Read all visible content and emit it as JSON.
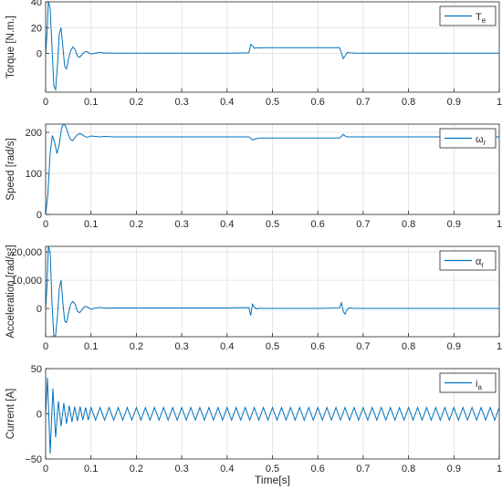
{
  "figure": {
    "xlabel": "Time[s]"
  },
  "colors": {
    "line": "#0072BD",
    "grid": "#dfdfdf",
    "axis": "#262626",
    "background": "#ffffff"
  },
  "chart_data": [
    {
      "type": "line",
      "ylabel": "Torque [N.m.]",
      "xlim": [
        0,
        1
      ],
      "ylim": [
        -30,
        40
      ],
      "xticks": [
        "0",
        "0.1",
        "0.2",
        "0.3",
        "0.4",
        "0.5",
        "0.6",
        "0.7",
        "0.8",
        "0.9",
        "1"
      ],
      "yticks": [
        {
          "v": 0,
          "label": "0"
        },
        {
          "v": 20,
          "label": "20"
        },
        {
          "v": 40,
          "label": "40"
        }
      ],
      "grid": true,
      "legend": "top-right",
      "series": [
        {
          "name": "T",
          "name_sub": "e",
          "x": [
            0,
            0.003,
            0.006,
            0.01,
            0.014,
            0.018,
            0.022,
            0.026,
            0.03,
            0.034,
            0.038,
            0.042,
            0.046,
            0.05,
            0.055,
            0.06,
            0.065,
            0.07,
            0.075,
            0.08,
            0.085,
            0.09,
            0.095,
            0.1,
            0.11,
            0.12,
            0.13,
            0.14,
            0.15,
            0.2,
            0.3,
            0.4,
            0.448,
            0.452,
            0.456,
            0.46,
            0.465,
            0.47,
            0.48,
            0.5,
            0.6,
            0.648,
            0.652,
            0.656,
            0.66,
            0.665,
            0.67,
            0.68,
            0.7,
            0.8,
            0.9,
            1.0
          ],
          "y": [
            0,
            15,
            40,
            35,
            5,
            -25,
            -28,
            -10,
            15,
            20,
            5,
            -10,
            -12,
            -5,
            2,
            5,
            3,
            -2,
            -3,
            -1,
            1,
            1.5,
            0.5,
            -0.5,
            0.3,
            0.8,
            0.2,
            0.4,
            0.2,
            0.2,
            0.2,
            0.2,
            0.5,
            7,
            6,
            4,
            4.5,
            4.2,
            4.5,
            4.5,
            4.5,
            4.5,
            0.5,
            -4,
            -2,
            0.8,
            0.5,
            0.3,
            0.2,
            0.2,
            0.2,
            0.2
          ]
        }
      ]
    },
    {
      "type": "line",
      "ylabel": "Speed [rad/s]",
      "xlim": [
        0,
        1
      ],
      "ylim": [
        0,
        220
      ],
      "xticks": [
        "0",
        "0.1",
        "0.2",
        "0.3",
        "0.4",
        "0.5",
        "0.6",
        "0.7",
        "0.8",
        "0.9",
        "1"
      ],
      "yticks": [
        {
          "v": 0,
          "label": "0"
        },
        {
          "v": 100,
          "label": "100"
        },
        {
          "v": 200,
          "label": "200"
        }
      ],
      "grid": true,
      "legend": "top-right",
      "series": [
        {
          "name": "ω",
          "name_sub": "r",
          "x": [
            0,
            0.005,
            0.01,
            0.015,
            0.02,
            0.025,
            0.03,
            0.035,
            0.04,
            0.045,
            0.05,
            0.055,
            0.06,
            0.065,
            0.07,
            0.075,
            0.08,
            0.085,
            0.09,
            0.095,
            0.1,
            0.11,
            0.12,
            0.13,
            0.15,
            0.2,
            0.3,
            0.4,
            0.448,
            0.452,
            0.456,
            0.46,
            0.466,
            0.475,
            0.5,
            0.6,
            0.648,
            0.652,
            0.656,
            0.66,
            0.666,
            0.675,
            0.7,
            0.8,
            0.9,
            1.0
          ],
          "y": [
            0,
            50,
            150,
            192,
            175,
            148,
            170,
            210,
            222,
            212,
            195,
            182,
            180,
            188,
            194,
            197,
            195,
            191,
            188,
            189,
            191,
            190,
            189,
            190,
            189,
            189,
            189,
            189,
            189,
            186,
            181,
            183,
            185,
            186,
            186,
            186,
            186,
            190,
            195,
            191,
            189,
            189,
            189,
            189,
            189,
            189
          ]
        }
      ]
    },
    {
      "type": "line",
      "ylabel": "Acceleration [rad/s²]",
      "xlim": [
        0,
        1
      ],
      "ylim": [
        -10000,
        22000
      ],
      "xticks": [
        "0",
        "0.1",
        "0.2",
        "0.3",
        "0.4",
        "0.5",
        "0.6",
        "0.7",
        "0.8",
        "0.9",
        "1"
      ],
      "yticks": [
        {
          "v": 0,
          "label": "0"
        },
        {
          "v": 10000,
          "label": "10,000"
        },
        {
          "v": 20000,
          "label": "20,000"
        }
      ],
      "grid": true,
      "legend": "top-right",
      "series": [
        {
          "name": "α",
          "name_sub": "r",
          "x": [
            0,
            0.003,
            0.006,
            0.01,
            0.014,
            0.018,
            0.022,
            0.026,
            0.03,
            0.034,
            0.038,
            0.042,
            0.046,
            0.05,
            0.055,
            0.06,
            0.065,
            0.07,
            0.075,
            0.08,
            0.085,
            0.09,
            0.095,
            0.1,
            0.11,
            0.12,
            0.13,
            0.15,
            0.2,
            0.3,
            0.4,
            0.448,
            0.452,
            0.456,
            0.46,
            0.465,
            0.47,
            0.48,
            0.5,
            0.6,
            0.648,
            0.652,
            0.656,
            0.66,
            0.665,
            0.67,
            0.68,
            0.7,
            0.8,
            0.9,
            1.0
          ],
          "y": [
            0,
            8000,
            22000,
            20000,
            2000,
            -10000,
            -9500,
            -3000,
            7000,
            10000,
            2000,
            -4500,
            -5000,
            -2000,
            1500,
            2500,
            1500,
            -1000,
            -1500,
            -500,
            600,
            700,
            200,
            -300,
            200,
            400,
            100,
            200,
            200,
            200,
            200,
            300,
            -2500,
            1500,
            500,
            -200,
            100,
            0,
            0,
            0,
            200,
            2000,
            -1000,
            -2000,
            -300,
            200,
            0,
            0,
            0,
            0,
            0
          ]
        }
      ]
    },
    {
      "type": "line",
      "ylabel": "Current [A]",
      "xlim": [
        0,
        1
      ],
      "ylim": [
        -50,
        50
      ],
      "xticks": [
        "0",
        "0.1",
        "0.2",
        "0.3",
        "0.4",
        "0.5",
        "0.6",
        "0.7",
        "0.8",
        "0.9",
        "1"
      ],
      "yticks": [
        {
          "v": -50,
          "label": "−50"
        },
        {
          "v": 0,
          "label": "0"
        },
        {
          "v": 50,
          "label": "50"
        }
      ],
      "grid": true,
      "legend": "top-right",
      "series": [
        {
          "name": "i",
          "name_sub": "a",
          "x": [
            0,
            0.004,
            0.01,
            0.016,
            0.022,
            0.028,
            0.034,
            0.04,
            0.046,
            0.052,
            0.058,
            0.064,
            0.07,
            0.076,
            0.082,
            0.088,
            0.094,
            0.1,
            0.11,
            0.12,
            0.13,
            0.14,
            0.15,
            0.16,
            0.17,
            0.18,
            0.19,
            0.2,
            0.21,
            0.22,
            0.23,
            0.24,
            0.25,
            0.26,
            0.27,
            0.28,
            0.29,
            0.3,
            0.31,
            0.32,
            0.33,
            0.34,
            0.35,
            0.36,
            0.37,
            0.38,
            0.39,
            0.4,
            0.41,
            0.42,
            0.43,
            0.44,
            0.45,
            0.46,
            0.47,
            0.48,
            0.49,
            0.5,
            0.51,
            0.52,
            0.53,
            0.54,
            0.55,
            0.56,
            0.57,
            0.58,
            0.59,
            0.6,
            0.61,
            0.62,
            0.63,
            0.64,
            0.65,
            0.66,
            0.67,
            0.68,
            0.69,
            0.7,
            0.71,
            0.72,
            0.73,
            0.74,
            0.75,
            0.76,
            0.77,
            0.78,
            0.79,
            0.8,
            0.81,
            0.82,
            0.83,
            0.84,
            0.85,
            0.86,
            0.87,
            0.88,
            0.89,
            0.9,
            0.91,
            0.92,
            0.93,
            0.94,
            0.95,
            0.96,
            0.97,
            0.98,
            0.99,
            1.0
          ],
          "y": [
            0,
            40,
            -44,
            28,
            -26,
            14,
            -14,
            12,
            -11,
            9,
            -9,
            8,
            -8,
            8,
            -7,
            7,
            -7,
            7,
            -7,
            7,
            -7,
            7,
            -7,
            7,
            -7,
            7,
            -7,
            7,
            -7,
            7,
            -7,
            7,
            -7,
            7,
            -7,
            7,
            -7,
            7,
            -7,
            7,
            -7,
            7,
            -7,
            7,
            -7,
            7,
            -7,
            7,
            -7,
            7,
            -7,
            7,
            -7,
            7,
            -7,
            7,
            -7,
            7,
            -7,
            7,
            -7,
            7,
            -7,
            7,
            -7,
            7,
            -7,
            7,
            -7,
            7,
            -7,
            7,
            -7,
            7,
            -7,
            7,
            -7,
            7,
            -7,
            7,
            -7,
            7,
            -7,
            7,
            -7,
            7,
            -7,
            7,
            -7,
            7,
            -7,
            7,
            -7,
            7,
            -7,
            7,
            -7,
            7,
            -7,
            7,
            -7,
            7,
            -7,
            7,
            -7,
            7,
            -7,
            7
          ]
        }
      ]
    }
  ]
}
